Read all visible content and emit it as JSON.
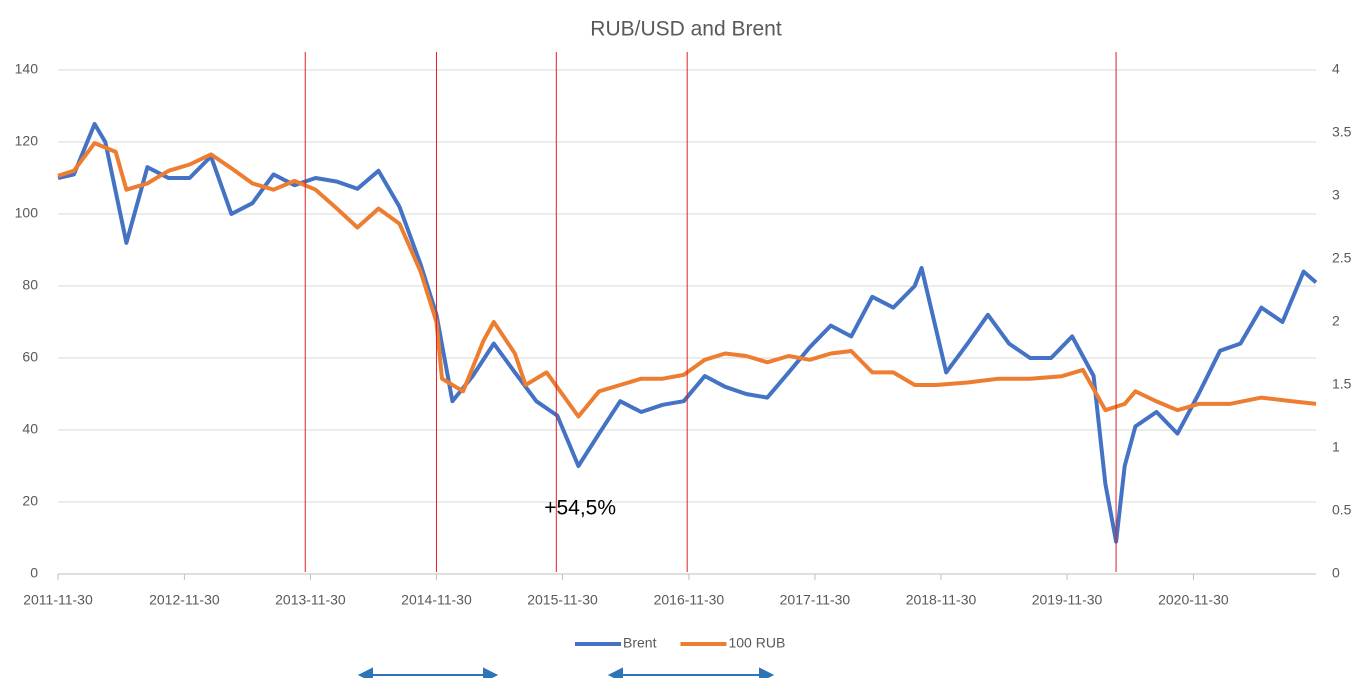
{
  "chart_data": {
    "type": "line",
    "title": "RUB/USD and Brent",
    "xlim": [
      "2011-11-30",
      "2021-11-20"
    ],
    "xticks": [
      "2011-11-30",
      "2012-11-30",
      "2013-11-30",
      "2014-11-30",
      "2015-11-30",
      "2016-11-30",
      "2017-11-30",
      "2018-11-30",
      "2019-11-30",
      "2020-11-30"
    ],
    "ylim": [
      0,
      140
    ],
    "yticks": [
      0,
      20,
      40,
      60,
      80,
      100,
      120,
      140
    ],
    "y2lim": [
      0,
      4
    ],
    "y2ticks": [
      0,
      0.5,
      1,
      1.5,
      2,
      2.5,
      3,
      3.5,
      4
    ],
    "grid": true,
    "legend": "bottom",
    "reference_lines": [
      "2013-11-15",
      "2014-11-30",
      "2015-11-12",
      "2016-11-25",
      "2020-04-20"
    ],
    "reference_color": "#e02020",
    "annotations": [
      {
        "text": "+54,5%",
        "x": "2016-01-20",
        "y": 18
      }
    ],
    "series": [
      {
        "name": "Brent",
        "color": "#4472c4",
        "x": [
          "2011-11-30",
          "2012-01-15",
          "2012-03-15",
          "2012-04-15",
          "2012-06-15",
          "2012-08-15",
          "2012-10-15",
          "2012-12-15",
          "2013-02-15",
          "2013-04-15",
          "2013-06-15",
          "2013-08-15",
          "2013-10-15",
          "2013-12-15",
          "2014-02-15",
          "2014-04-15",
          "2014-06-15",
          "2014-08-15",
          "2014-10-15",
          "2014-11-30",
          "2015-01-15",
          "2015-03-15",
          "2015-05-15",
          "2015-07-15",
          "2015-09-15",
          "2015-11-15",
          "2016-01-15",
          "2016-03-15",
          "2016-05-15",
          "2016-07-15",
          "2016-09-15",
          "2016-11-15",
          "2017-01-15",
          "2017-03-15",
          "2017-05-15",
          "2017-07-15",
          "2017-09-15",
          "2017-11-15",
          "2018-01-15",
          "2018-03-15",
          "2018-05-15",
          "2018-07-15",
          "2018-09-15",
          "2018-10-05",
          "2018-12-15",
          "2019-02-15",
          "2019-04-15",
          "2019-06-15",
          "2019-08-15",
          "2019-10-15",
          "2019-12-15",
          "2020-02-15",
          "2020-03-20",
          "2020-04-20",
          "2020-05-15",
          "2020-06-15",
          "2020-08-15",
          "2020-10-15",
          "2020-12-15",
          "2021-02-15",
          "2021-04-15",
          "2021-06-15",
          "2021-08-15",
          "2021-10-15",
          "2021-11-20"
        ],
        "values": [
          110,
          111,
          125,
          120,
          92,
          113,
          110,
          110,
          116,
          100,
          103,
          111,
          108,
          110,
          109,
          107,
          112,
          102,
          86,
          72,
          48,
          55,
          64,
          56,
          48,
          44,
          30,
          39,
          48,
          45,
          47,
          48,
          55,
          52,
          50,
          49,
          56,
          63,
          69,
          66,
          77,
          74,
          80,
          85,
          56,
          64,
          72,
          64,
          60,
          60,
          66,
          55,
          25,
          9,
          30,
          41,
          45,
          39,
          50,
          62,
          64,
          74,
          70,
          84,
          81
        ]
      },
      {
        "name": "100 RUB",
        "color": "#ed7d31",
        "axis": "y2",
        "x": [
          "2011-11-30",
          "2012-01-15",
          "2012-03-15",
          "2012-05-15",
          "2012-06-15",
          "2012-08-15",
          "2012-10-15",
          "2012-12-15",
          "2013-02-15",
          "2013-04-15",
          "2013-06-15",
          "2013-08-15",
          "2013-10-15",
          "2013-12-15",
          "2014-02-15",
          "2014-04-15",
          "2014-06-15",
          "2014-08-15",
          "2014-10-15",
          "2014-11-30",
          "2014-12-16",
          "2015-02-15",
          "2015-04-15",
          "2015-05-15",
          "2015-07-15",
          "2015-08-15",
          "2015-10-15",
          "2016-01-15",
          "2016-03-15",
          "2016-05-15",
          "2016-07-15",
          "2016-09-15",
          "2016-11-15",
          "2017-01-15",
          "2017-03-15",
          "2017-05-15",
          "2017-07-15",
          "2017-09-15",
          "2017-11-15",
          "2018-01-15",
          "2018-03-15",
          "2018-05-15",
          "2018-07-15",
          "2018-09-15",
          "2018-11-15",
          "2019-02-15",
          "2019-05-15",
          "2019-08-15",
          "2019-11-15",
          "2020-01-15",
          "2020-03-20",
          "2020-05-15",
          "2020-06-15",
          "2020-08-15",
          "2020-10-15",
          "2020-12-15",
          "2021-03-15",
          "2021-06-15",
          "2021-09-15",
          "2021-11-20"
        ],
        "values": [
          3.16,
          3.2,
          3.42,
          3.35,
          3.05,
          3.1,
          3.2,
          3.25,
          3.33,
          3.22,
          3.1,
          3.05,
          3.12,
          3.05,
          2.9,
          2.75,
          2.9,
          2.78,
          2.4,
          2.0,
          1.55,
          1.45,
          1.85,
          2.0,
          1.75,
          1.5,
          1.6,
          1.25,
          1.45,
          1.5,
          1.55,
          1.55,
          1.58,
          1.7,
          1.75,
          1.73,
          1.68,
          1.73,
          1.7,
          1.75,
          1.77,
          1.6,
          1.6,
          1.5,
          1.5,
          1.52,
          1.55,
          1.55,
          1.57,
          1.62,
          1.3,
          1.35,
          1.45,
          1.37,
          1.3,
          1.35,
          1.35,
          1.4,
          1.37,
          1.35
        ]
      }
    ]
  }
}
